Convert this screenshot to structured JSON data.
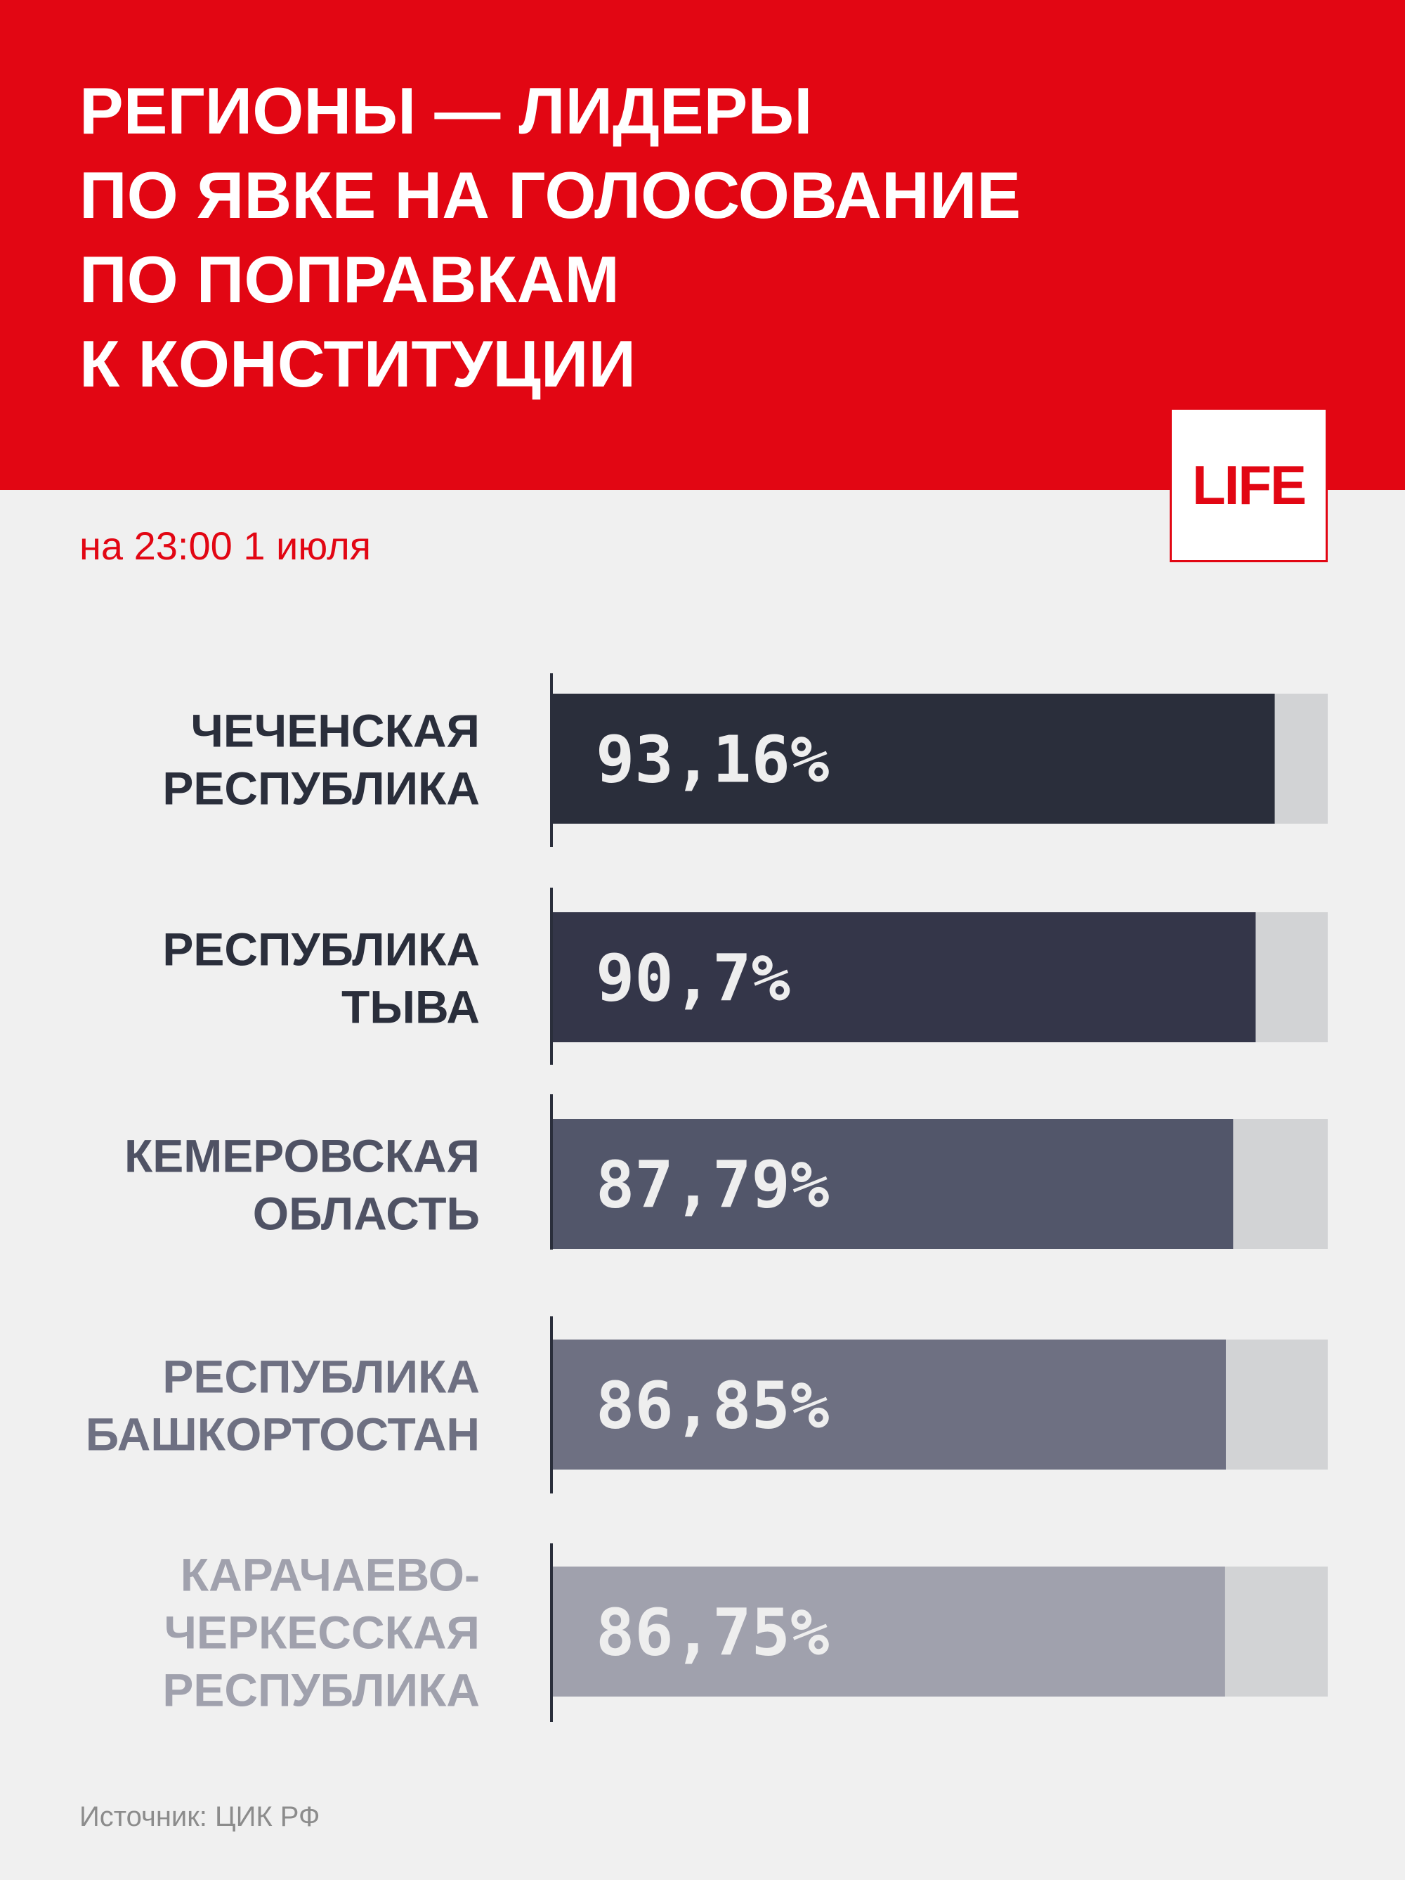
{
  "header": {
    "title": "РЕГИОНЫ — ЛИДЕРЫ\nПО ЯВКЕ НА ГОЛОСОВАНИЕ\nПО ПОПРАВКАМ\nК КОНСТИТУЦИИ",
    "logo_text": "LIFE",
    "subtitle": "на 23:00 1 июля"
  },
  "colors": {
    "accent": "#e20613",
    "bar_track": "#d2d3d5",
    "bar_colors": [
      "#2a2e3b",
      "#343649",
      "#52566a",
      "#6e7082",
      "#a0a1ad"
    ],
    "label_colors": [
      "#2a2e3b",
      "#2a2e3b",
      "#4f5264",
      "#6e7082",
      "#a0a1ad"
    ]
  },
  "chart_data": {
    "type": "bar",
    "orientation": "horizontal",
    "categories": [
      [
        "ЧЕЧЕНСКАЯ",
        "РЕСПУБЛИКА"
      ],
      [
        "РЕСПУБЛИКА",
        "ТЫВА"
      ],
      [
        "КЕМЕРОВСКАЯ",
        "ОБЛАСТЬ"
      ],
      [
        "РЕСПУБЛИКА",
        "БАШКОРТОСТАН"
      ],
      [
        "КАРАЧАЕВО-",
        "ЧЕРКЕССКАЯ",
        "РЕСПУБЛИКА"
      ]
    ],
    "values": [
      93.16,
      90.7,
      87.79,
      86.85,
      86.75
    ],
    "value_labels": [
      "93,16%",
      "90,7%",
      "87,79%",
      "86,85%",
      "86,75%"
    ],
    "xlim": [
      0,
      100
    ],
    "title": "РЕГИОНЫ — ЛИДЕРЫ ПО ЯВКЕ НА ГОЛОСОВАНИЕ ПО ПОПРАВКАМ К КОНСТИТУЦИИ",
    "grid": false,
    "legend": "none"
  },
  "footer": {
    "source": "Источник: ЦИК РФ"
  }
}
